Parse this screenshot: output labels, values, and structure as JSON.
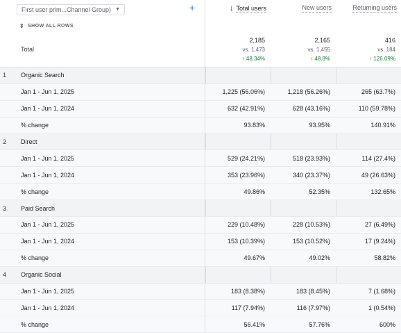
{
  "header": {
    "dimension_select": "First user prim...Channel Group)",
    "show_all_rows": "SHOW ALL ROWS",
    "total_label": "Total",
    "columns": [
      {
        "title": "Total users",
        "total": "2,185",
        "vs": "vs. 1,473",
        "change": "↑ 48.34%"
      },
      {
        "title": "New users",
        "total": "2,165",
        "vs": "vs. 1,455",
        "change": "↑ 48.8%"
      },
      {
        "title": "Returning users",
        "total": "416",
        "vs": "vs. 184",
        "change": "↑ 126.09%"
      }
    ]
  },
  "groups": [
    {
      "num": "1",
      "name": "Organic Search",
      "rows": [
        {
          "label": "Jan 1 - Jun 1, 2025",
          "values": [
            "1,225 (56.06%)",
            "1,218 (56.26%)",
            "265 (63.7%)"
          ]
        },
        {
          "label": "Jan 1 - Jun 1, 2024",
          "values": [
            "632 (42.91%)",
            "628 (43.16%)",
            "110 (59.78%)"
          ]
        },
        {
          "label": "% change",
          "values": [
            "93.83%",
            "93.95%",
            "140.91%"
          ]
        }
      ]
    },
    {
      "num": "2",
      "name": "Direct",
      "rows": [
        {
          "label": "Jan 1 - Jun 1, 2025",
          "values": [
            "529 (24.21%)",
            "518 (23.93%)",
            "114 (27.4%)"
          ]
        },
        {
          "label": "Jan 1 - Jun 1, 2024",
          "values": [
            "353 (23.96%)",
            "340 (23.37%)",
            "49 (26.63%)"
          ]
        },
        {
          "label": "% change",
          "values": [
            "49.86%",
            "52.35%",
            "132.65%"
          ]
        }
      ]
    },
    {
      "num": "3",
      "name": "Paid Search",
      "rows": [
        {
          "label": "Jan 1 - Jun 1, 2025",
          "values": [
            "229 (10.48%)",
            "228 (10.53%)",
            "27 (6.49%)"
          ]
        },
        {
          "label": "Jan 1 - Jun 1, 2024",
          "values": [
            "153 (10.39%)",
            "153 (10.52%)",
            "17 (9.24%)"
          ]
        },
        {
          "label": "% change",
          "values": [
            "49.67%",
            "49.02%",
            "58.82%"
          ]
        }
      ]
    },
    {
      "num": "4",
      "name": "Organic Social",
      "rows": [
        {
          "label": "Jan 1 - Jun 1, 2025",
          "values": [
            "183 (8.38%)",
            "183 (8.45%)",
            "7 (1.68%)"
          ]
        },
        {
          "label": "Jan 1 - Jun 1, 2024",
          "values": [
            "117 (7.94%)",
            "116 (7.97%)",
            "1 (0.54%)"
          ]
        },
        {
          "label": "% change",
          "values": [
            "56.41%",
            "57.76%",
            "600%"
          ]
        }
      ]
    }
  ]
}
